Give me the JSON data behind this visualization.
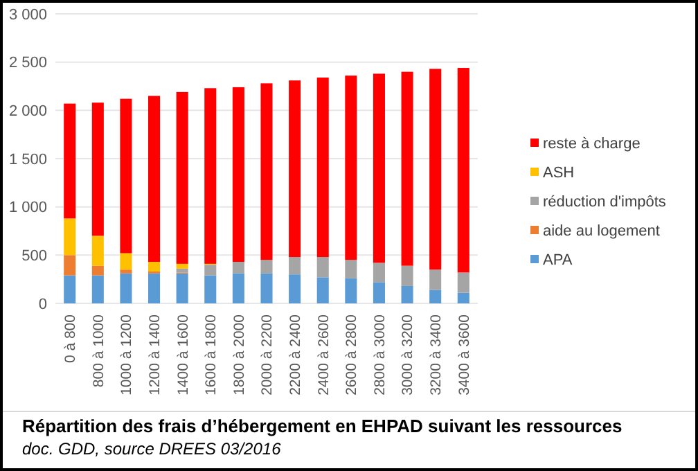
{
  "chart_data": {
    "type": "bar",
    "stacked": true,
    "title": "Répartition des frais d’hébergement en EHPAD suivant les ressources",
    "annotations": [
      "doc. GDD, source DREES 03/2016"
    ],
    "categories": [
      "0 à 800",
      "800 à 1000",
      "1000 à 1200",
      "1200 à 1400",
      "1400 à 1600",
      "1600 à 1800",
      "1800 à 2000",
      "2000 à 2200",
      "2200 à 2400",
      "2400 à 2600",
      "2600 à 2800",
      "2800 à 3000",
      "3000 à 3200",
      "3200 à 3400",
      "3400 à 3600"
    ],
    "series": [
      {
        "name": "APA",
        "color": "#5b9bd5",
        "values": [
          290,
          290,
          310,
          310,
          310,
          290,
          310,
          310,
          300,
          270,
          260,
          220,
          180,
          140,
          110
        ]
      },
      {
        "name": "aide au logement",
        "color": "#ed7d31",
        "values": [
          210,
          100,
          40,
          20,
          10,
          0,
          0,
          0,
          0,
          0,
          0,
          0,
          0,
          0,
          0
        ]
      },
      {
        "name": "réduction d'impôts",
        "color": "#a5a5a5",
        "values": [
          0,
          0,
          0,
          0,
          40,
          110,
          120,
          140,
          180,
          210,
          190,
          200,
          210,
          210,
          210
        ]
      },
      {
        "name": "ASH",
        "color": "#ffc000",
        "values": [
          380,
          310,
          170,
          100,
          50,
          10,
          0,
          0,
          0,
          0,
          0,
          0,
          0,
          0,
          0
        ]
      },
      {
        "name": "reste à charge",
        "color": "#ff0000",
        "values": [
          1190,
          1380,
          1600,
          1720,
          1780,
          1820,
          1810,
          1830,
          1830,
          1860,
          1910,
          1960,
          2010,
          2080,
          2120
        ]
      }
    ],
    "ylim": [
      0,
      3000
    ],
    "yticks": [
      0,
      {
        "value": 500,
        "label": "500"
      },
      {
        "value": 1000,
        "label": "1 000"
      },
      {
        "value": 1500,
        "label": "1 500"
      },
      {
        "value": 2000,
        "label": "2 000"
      },
      {
        "value": 2500,
        "label": "2 500"
      },
      {
        "value": 3000,
        "label": "3 000"
      }
    ],
    "grid": "y",
    "legend": "right"
  }
}
